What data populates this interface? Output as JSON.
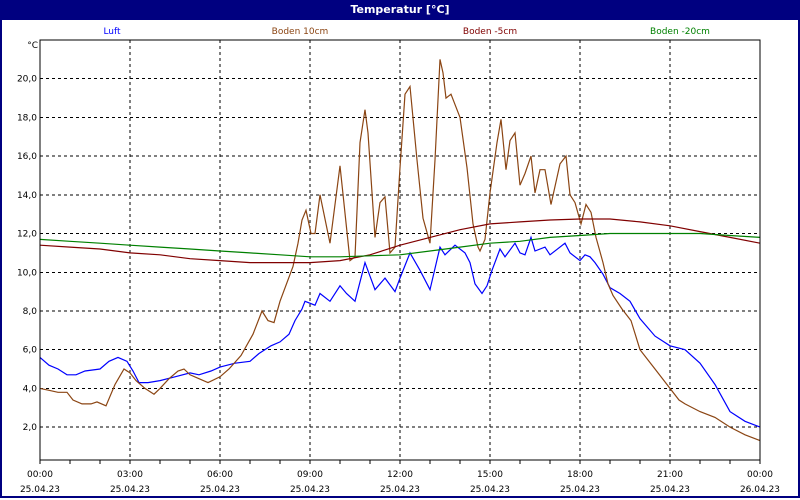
{
  "window": {
    "title": "Temperatur [°C]"
  },
  "chart_data": {
    "type": "line",
    "title": "Temperatur [°C]",
    "ylabel": "°C",
    "ylim": [
      0.3,
      22.0
    ],
    "xlim": [
      "25.04.23 00:00",
      "26.04.23 00:00"
    ],
    "grid": true,
    "legend_placement": "top",
    "y_ticks": [
      "2,0",
      "4,0",
      "6,0",
      "8,0",
      "10,0",
      "12,0",
      "14,0",
      "16,0",
      "18,0",
      "20,0"
    ],
    "y_tick_values": [
      2,
      4,
      6,
      8,
      10,
      12,
      14,
      16,
      18,
      20
    ],
    "x_ticks": [
      {
        "time": "00:00",
        "date": "25.04.23"
      },
      {
        "time": "03:00",
        "date": "25.04.23"
      },
      {
        "time": "06:00",
        "date": "25.04.23"
      },
      {
        "time": "09:00",
        "date": "25.04.23"
      },
      {
        "time": "12:00",
        "date": "25.04.23"
      },
      {
        "time": "15:00",
        "date": "25.04.23"
      },
      {
        "time": "18:00",
        "date": "25.04.23"
      },
      {
        "time": "21:00",
        "date": "25.04.23"
      },
      {
        "time": "00:00",
        "date": "26.04.23"
      }
    ],
    "series": [
      {
        "name": "Luft",
        "color": "#0000ff",
        "points": [
          [
            "00:00",
            5.6
          ],
          [
            "00:18",
            5.2
          ],
          [
            "00:36",
            5.0
          ],
          [
            "00:54",
            4.7
          ],
          [
            "01:12",
            4.7
          ],
          [
            "01:30",
            4.9
          ],
          [
            "02:00",
            5.0
          ],
          [
            "02:18",
            5.4
          ],
          [
            "02:36",
            5.6
          ],
          [
            "02:54",
            5.4
          ],
          [
            "03:06",
            4.9
          ],
          [
            "03:18",
            4.3
          ],
          [
            "03:36",
            4.3
          ],
          [
            "04:00",
            4.4
          ],
          [
            "04:30",
            4.6
          ],
          [
            "05:00",
            4.8
          ],
          [
            "05:18",
            4.7
          ],
          [
            "05:42",
            4.9
          ],
          [
            "06:00",
            5.1
          ],
          [
            "06:30",
            5.3
          ],
          [
            "07:00",
            5.4
          ],
          [
            "07:18",
            5.8
          ],
          [
            "07:42",
            6.2
          ],
          [
            "08:00",
            6.4
          ],
          [
            "08:18",
            6.8
          ],
          [
            "08:30",
            7.5
          ],
          [
            "08:44",
            8.1
          ],
          [
            "08:50",
            8.5
          ],
          [
            "09:10",
            8.3
          ],
          [
            "09:20",
            8.9
          ],
          [
            "09:40",
            8.5
          ],
          [
            "10:00",
            9.3
          ],
          [
            "10:13",
            8.9
          ],
          [
            "10:30",
            8.5
          ],
          [
            "10:50",
            10.5
          ],
          [
            "11:10",
            9.1
          ],
          [
            "11:30",
            9.7
          ],
          [
            "11:50",
            9.0
          ],
          [
            "12:00",
            9.7
          ],
          [
            "12:20",
            11.0
          ],
          [
            "12:40",
            10.1
          ],
          [
            "13:00",
            9.1
          ],
          [
            "13:20",
            11.3
          ],
          [
            "13:30",
            10.9
          ],
          [
            "13:50",
            11.4
          ],
          [
            "14:10",
            11.0
          ],
          [
            "14:20",
            10.5
          ],
          [
            "14:30",
            9.4
          ],
          [
            "14:44",
            8.9
          ],
          [
            "14:54",
            9.3
          ],
          [
            "15:04",
            10.1
          ],
          [
            "15:20",
            11.2
          ],
          [
            "15:30",
            10.8
          ],
          [
            "15:50",
            11.5
          ],
          [
            "16:00",
            11.0
          ],
          [
            "16:10",
            10.9
          ],
          [
            "16:22",
            11.8
          ],
          [
            "16:30",
            11.1
          ],
          [
            "16:50",
            11.3
          ],
          [
            "17:00",
            10.9
          ],
          [
            "17:30",
            11.5
          ],
          [
            "17:40",
            11.0
          ],
          [
            "18:00",
            10.6
          ],
          [
            "18:10",
            10.9
          ],
          [
            "18:20",
            10.8
          ],
          [
            "18:30",
            10.5
          ],
          [
            "18:46",
            9.9
          ],
          [
            "19:00",
            9.2
          ],
          [
            "19:20",
            8.9
          ],
          [
            "19:40",
            8.5
          ],
          [
            "20:00",
            7.6
          ],
          [
            "20:30",
            6.7
          ],
          [
            "21:00",
            6.2
          ],
          [
            "21:30",
            6.0
          ],
          [
            "22:00",
            5.3
          ],
          [
            "22:30",
            4.2
          ],
          [
            "23:00",
            2.8
          ],
          [
            "23:30",
            2.3
          ],
          [
            "24:00",
            2.0
          ]
        ]
      },
      {
        "name": "Boden 10cm",
        "color": "#8b4513",
        "points": [
          [
            "00:00",
            4.0
          ],
          [
            "00:18",
            3.9
          ],
          [
            "00:36",
            3.8
          ],
          [
            "00:54",
            3.8
          ],
          [
            "01:06",
            3.4
          ],
          [
            "01:24",
            3.2
          ],
          [
            "01:42",
            3.2
          ],
          [
            "01:54",
            3.3
          ],
          [
            "02:12",
            3.1
          ],
          [
            "02:30",
            4.2
          ],
          [
            "02:48",
            5.0
          ],
          [
            "03:00",
            4.8
          ],
          [
            "03:12",
            4.4
          ],
          [
            "03:30",
            4.0
          ],
          [
            "03:48",
            3.7
          ],
          [
            "04:00",
            4.0
          ],
          [
            "04:18",
            4.5
          ],
          [
            "04:36",
            4.9
          ],
          [
            "04:48",
            5.0
          ],
          [
            "05:00",
            4.7
          ],
          [
            "05:18",
            4.5
          ],
          [
            "05:36",
            4.3
          ],
          [
            "06:00",
            4.6
          ],
          [
            "06:18",
            5.0
          ],
          [
            "06:42",
            5.7
          ],
          [
            "07:06",
            6.8
          ],
          [
            "07:24",
            8.0
          ],
          [
            "07:36",
            7.5
          ],
          [
            "07:48",
            7.4
          ],
          [
            "08:00",
            8.5
          ],
          [
            "08:26",
            10.3
          ],
          [
            "08:36",
            11.5
          ],
          [
            "08:44",
            12.7
          ],
          [
            "08:52",
            13.2
          ],
          [
            "09:02",
            12.0
          ],
          [
            "09:10",
            12.0
          ],
          [
            "09:20",
            14.0
          ],
          [
            "09:40",
            11.5
          ],
          [
            "10:00",
            15.5
          ],
          [
            "10:20",
            10.6
          ],
          [
            "10:30",
            10.8
          ],
          [
            "10:40",
            16.7
          ],
          [
            "10:50",
            18.4
          ],
          [
            "10:56",
            17.2
          ],
          [
            "11:10",
            11.8
          ],
          [
            "11:20",
            13.6
          ],
          [
            "11:30",
            13.9
          ],
          [
            "11:40",
            11.0
          ],
          [
            "11:50",
            11.3
          ],
          [
            "12:00",
            15.4
          ],
          [
            "12:10",
            19.2
          ],
          [
            "12:20",
            19.6
          ],
          [
            "12:34",
            15.8
          ],
          [
            "12:46",
            12.8
          ],
          [
            "13:00",
            11.5
          ],
          [
            "13:10",
            15.8
          ],
          [
            "13:20",
            21.0
          ],
          [
            "13:26",
            20.3
          ],
          [
            "13:32",
            19.0
          ],
          [
            "13:42",
            19.2
          ],
          [
            "14:00",
            18.0
          ],
          [
            "14:14",
            15.4
          ],
          [
            "14:26",
            12.5
          ],
          [
            "14:36",
            11.3
          ],
          [
            "14:40",
            11.1
          ],
          [
            "14:50",
            11.7
          ],
          [
            "15:00",
            14.1
          ],
          [
            "15:14",
            16.7
          ],
          [
            "15:22",
            17.9
          ],
          [
            "15:32",
            15.3
          ],
          [
            "15:40",
            16.8
          ],
          [
            "15:50",
            17.2
          ],
          [
            "16:00",
            14.5
          ],
          [
            "16:10",
            15.1
          ],
          [
            "16:22",
            16.0
          ],
          [
            "16:30",
            14.1
          ],
          [
            "16:40",
            15.3
          ],
          [
            "16:50",
            15.3
          ],
          [
            "17:02",
            13.5
          ],
          [
            "17:20",
            15.6
          ],
          [
            "17:32",
            16.0
          ],
          [
            "17:40",
            14.0
          ],
          [
            "17:50",
            13.6
          ],
          [
            "18:02",
            12.5
          ],
          [
            "18:12",
            13.5
          ],
          [
            "18:22",
            13.1
          ],
          [
            "18:32",
            11.8
          ],
          [
            "18:46",
            10.5
          ],
          [
            "18:56",
            9.4
          ],
          [
            "19:06",
            8.8
          ],
          [
            "19:24",
            8.1
          ],
          [
            "19:42",
            7.5
          ],
          [
            "20:00",
            6.0
          ],
          [
            "20:30",
            5.0
          ],
          [
            "21:00",
            4.0
          ],
          [
            "21:18",
            3.4
          ],
          [
            "21:30",
            3.2
          ],
          [
            "22:00",
            2.8
          ],
          [
            "22:30",
            2.5
          ],
          [
            "23:00",
            2.0
          ],
          [
            "23:30",
            1.6
          ],
          [
            "24:00",
            1.3
          ]
        ]
      },
      {
        "name": "Boden -5cm",
        "color": "#800000",
        "points": [
          [
            "00:00",
            11.4
          ],
          [
            "01:00",
            11.3
          ],
          [
            "02:00",
            11.2
          ],
          [
            "03:00",
            11.0
          ],
          [
            "04:00",
            10.9
          ],
          [
            "05:00",
            10.7
          ],
          [
            "06:00",
            10.6
          ],
          [
            "07:00",
            10.5
          ],
          [
            "08:00",
            10.5
          ],
          [
            "09:00",
            10.5
          ],
          [
            "10:00",
            10.6
          ],
          [
            "11:00",
            10.9
          ],
          [
            "12:00",
            11.4
          ],
          [
            "13:00",
            11.8
          ],
          [
            "14:00",
            12.2
          ],
          [
            "15:00",
            12.5
          ],
          [
            "16:00",
            12.6
          ],
          [
            "17:00",
            12.7
          ],
          [
            "18:00",
            12.75
          ],
          [
            "19:00",
            12.75
          ],
          [
            "20:00",
            12.6
          ],
          [
            "21:00",
            12.4
          ],
          [
            "22:00",
            12.1
          ],
          [
            "23:00",
            11.8
          ],
          [
            "24:00",
            11.5
          ]
        ]
      },
      {
        "name": "Boden -20cm",
        "color": "#008000",
        "points": [
          [
            "00:00",
            11.7
          ],
          [
            "01:00",
            11.6
          ],
          [
            "02:00",
            11.5
          ],
          [
            "03:00",
            11.4
          ],
          [
            "04:00",
            11.3
          ],
          [
            "05:00",
            11.2
          ],
          [
            "06:00",
            11.1
          ],
          [
            "07:00",
            11.0
          ],
          [
            "08:00",
            10.9
          ],
          [
            "09:00",
            10.8
          ],
          [
            "10:00",
            10.8
          ],
          [
            "11:00",
            10.85
          ],
          [
            "12:00",
            10.9
          ],
          [
            "13:00",
            11.1
          ],
          [
            "14:00",
            11.3
          ],
          [
            "15:00",
            11.5
          ],
          [
            "16:00",
            11.6
          ],
          [
            "17:00",
            11.8
          ],
          [
            "18:00",
            11.9
          ],
          [
            "19:00",
            12.0
          ],
          [
            "20:00",
            12.0
          ],
          [
            "21:00",
            12.0
          ],
          [
            "22:00",
            12.0
          ],
          [
            "23:00",
            11.9
          ],
          [
            "24:00",
            11.8
          ]
        ]
      }
    ]
  }
}
